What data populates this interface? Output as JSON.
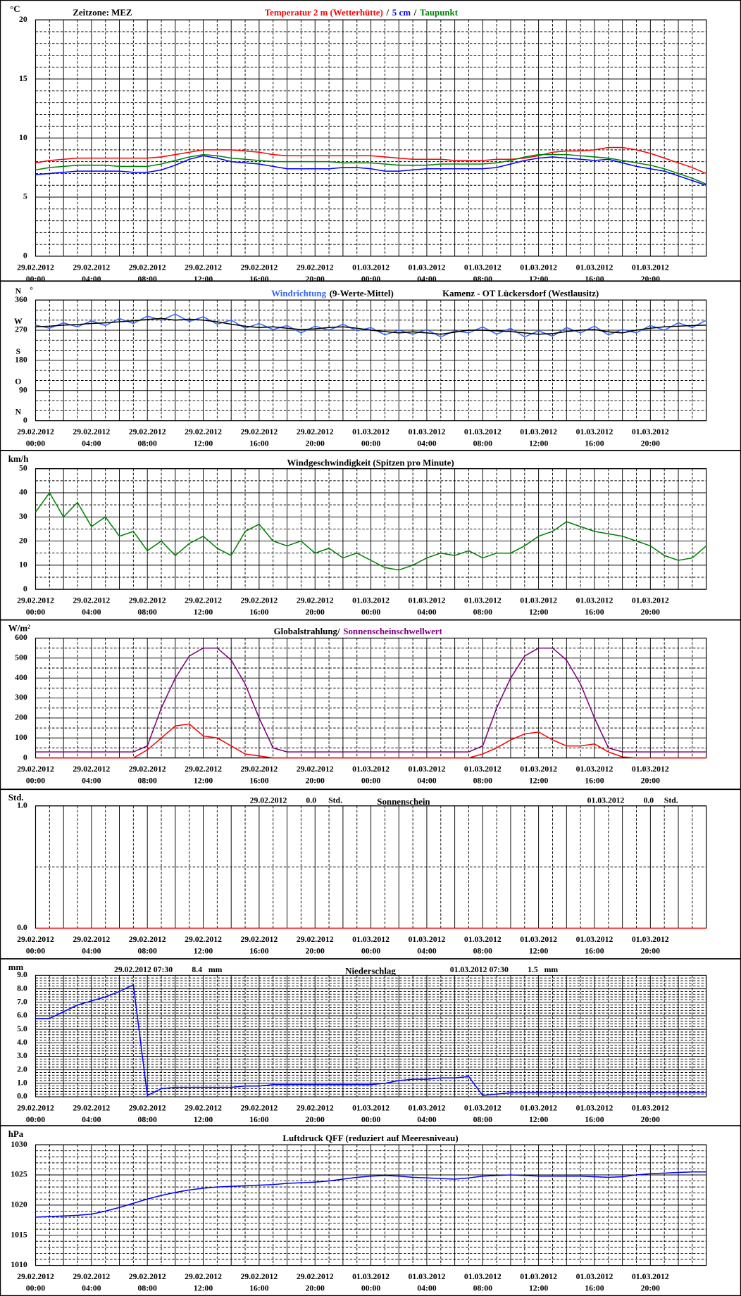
{
  "time_axis": {
    "xlim": [
      0,
      48
    ],
    "xticks": [
      {
        "value": 0,
        "label": [
          "29.02.2012",
          "00:00"
        ]
      },
      {
        "value": 4,
        "label": [
          "29.02.2012",
          "04:00"
        ]
      },
      {
        "value": 8,
        "label": [
          "29.02.2012",
          "08:00"
        ]
      },
      {
        "value": 12,
        "label": [
          "29.02.2012",
          "12:00"
        ]
      },
      {
        "value": 16,
        "label": [
          "29.02.2012",
          "16:00"
        ]
      },
      {
        "value": 20,
        "label": [
          "29.02.2012",
          "20:00"
        ]
      },
      {
        "value": 24,
        "label": [
          "01.03.2012",
          "00:00"
        ]
      },
      {
        "value": 28,
        "label": [
          "01.03.2012",
          "04:00"
        ]
      },
      {
        "value": 32,
        "label": [
          "01.03.2012",
          "08:00"
        ]
      },
      {
        "value": 36,
        "label": [
          "01.03.2012",
          "12:00"
        ]
      },
      {
        "value": 40,
        "label": [
          "01.03.2012",
          "16:00"
        ]
      },
      {
        "value": 44,
        "label": [
          "01.03.2012",
          "20:00"
        ]
      }
    ],
    "xgrid_step": 1,
    "x": [
      0,
      1,
      2,
      3,
      4,
      5,
      6,
      7,
      8,
      9,
      10,
      11,
      12,
      13,
      14,
      15,
      16,
      17,
      18,
      19,
      20,
      21,
      22,
      23,
      24,
      25,
      26,
      27,
      28,
      29,
      30,
      31,
      32,
      33,
      34,
      35,
      36,
      37,
      38,
      39,
      40,
      41,
      42,
      43,
      44,
      45,
      46,
      47,
      48
    ]
  },
  "chart_data": [
    {
      "type": "line",
      "unit": "°C",
      "annotation": "Zeitzone: MEZ",
      "legend_separator": "/",
      "ylim": [
        0,
        20
      ],
      "yticks": [
        0,
        5,
        10,
        15,
        20
      ],
      "ygrid_step": 1,
      "series": [
        {
          "name": "Temperatur 2 m (Wetterhütte)",
          "color": "#ff0000",
          "values": [
            7.9,
            8.1,
            8.2,
            8.3,
            8.3,
            8.3,
            8.3,
            8.3,
            8.3,
            8.4,
            8.6,
            8.8,
            9.0,
            9.0,
            9.0,
            8.9,
            8.8,
            8.6,
            8.5,
            8.5,
            8.5,
            8.5,
            8.5,
            8.5,
            8.5,
            8.4,
            8.3,
            8.2,
            8.2,
            8.2,
            8.1,
            8.1,
            8.1,
            8.2,
            8.2,
            8.3,
            8.5,
            8.8,
            8.9,
            8.9,
            9.0,
            9.2,
            9.2,
            9.0,
            8.7,
            8.3,
            7.9,
            7.5,
            7.0
          ]
        },
        {
          "name": "5 cm",
          "color": "#0000ff",
          "values": [
            6.9,
            7.0,
            7.1,
            7.2,
            7.2,
            7.2,
            7.2,
            7.1,
            7.1,
            7.3,
            7.7,
            8.2,
            8.5,
            8.3,
            8.0,
            7.9,
            7.8,
            7.6,
            7.4,
            7.4,
            7.4,
            7.4,
            7.5,
            7.5,
            7.4,
            7.2,
            7.2,
            7.3,
            7.4,
            7.4,
            7.4,
            7.4,
            7.4,
            7.5,
            7.8,
            8.1,
            8.3,
            8.4,
            8.3,
            8.2,
            8.1,
            8.2,
            7.9,
            7.6,
            7.4,
            7.2,
            6.8,
            6.4,
            6.0
          ]
        },
        {
          "name": "Taupunkt",
          "color": "#008000",
          "values": [
            7.3,
            7.5,
            7.6,
            7.7,
            7.7,
            7.7,
            7.6,
            7.6,
            7.6,
            7.8,
            8.1,
            8.4,
            8.6,
            8.5,
            8.3,
            8.2,
            8.1,
            8.0,
            8.0,
            8.0,
            8.0,
            8.0,
            7.9,
            7.9,
            7.9,
            7.8,
            7.7,
            7.7,
            7.7,
            7.8,
            7.8,
            7.8,
            7.8,
            7.9,
            8.1,
            8.4,
            8.6,
            8.6,
            8.6,
            8.5,
            8.4,
            8.3,
            8.1,
            7.9,
            7.7,
            7.4,
            7.0,
            6.6,
            6.1
          ]
        }
      ]
    },
    {
      "type": "line",
      "unit": "°",
      "annotation": "Kamenz - OT Lückersdorf (Westlausitz)",
      "ylim": [
        0,
        360
      ],
      "yticks": [
        0,
        90,
        180,
        270,
        360
      ],
      "compass": [
        "N",
        "O",
        "S",
        "W",
        "N"
      ],
      "ygrid_step": 30,
      "series": [
        {
          "name": "Windrichtung",
          "color": "#3366ff",
          "values": [
            285,
            276,
            292,
            280,
            298,
            284,
            305,
            290,
            312,
            300,
            318,
            296,
            310,
            288,
            300,
            276,
            290,
            272,
            284,
            262,
            282,
            270,
            288,
            268,
            278,
            256,
            270,
            258,
            272,
            250,
            268,
            262,
            280,
            258,
            276,
            250,
            268,
            252,
            278,
            262,
            282,
            256,
            272,
            262,
            284,
            270,
            292,
            278,
            300
          ]
        },
        {
          "name": "(9-Werte-Mittel)",
          "color": "#000000",
          "values": [
            280,
            282,
            285,
            287,
            290,
            292,
            295,
            298,
            302,
            305,
            300,
            303,
            300,
            295,
            288,
            282,
            278,
            280,
            276,
            272,
            274,
            278,
            280,
            276,
            270,
            266,
            262,
            265,
            262,
            258,
            264,
            270,
            270,
            268,
            266,
            262,
            258,
            260,
            266,
            270,
            272,
            265,
            262,
            270,
            276,
            280,
            282,
            284,
            285
          ]
        }
      ]
    },
    {
      "type": "line",
      "unit": "km/h",
      "title": "Windgeschwindigkeit (Spitzen pro Minute)",
      "ylim": [
        0,
        50
      ],
      "yticks": [
        0,
        10,
        20,
        30,
        40,
        50
      ],
      "ygrid_step": 5,
      "series": [
        {
          "name": null,
          "color": "#008000",
          "values": [
            32,
            40,
            30,
            36,
            26,
            30,
            22,
            24,
            16,
            20,
            14,
            19,
            22,
            17,
            14,
            24,
            27,
            20,
            18,
            20,
            15,
            17,
            13,
            15,
            12,
            9,
            8,
            10,
            13,
            15,
            14,
            16,
            13,
            15,
            15,
            18,
            22,
            24,
            28,
            26,
            24,
            23,
            22,
            20,
            18,
            14,
            12,
            13,
            18
          ]
        }
      ]
    },
    {
      "type": "line",
      "unit": "W/m²",
      "ylim": [
        0,
        600
      ],
      "yticks": [
        0,
        100,
        200,
        300,
        400,
        500,
        600
      ],
      "ygrid_step": 50,
      "series": [
        {
          "name": "Globalstrahlung/",
          "color": "#ff0000",
          "values": [
            0,
            0,
            0,
            0,
            0,
            0,
            0,
            0,
            40,
            100,
            160,
            170,
            110,
            100,
            60,
            20,
            10,
            0,
            0,
            0,
            0,
            0,
            0,
            0,
            0,
            0,
            0,
            0,
            0,
            0,
            0,
            0,
            20,
            50,
            90,
            120,
            130,
            90,
            60,
            60,
            70,
            30,
            5,
            0,
            0,
            0,
            0,
            0,
            0
          ]
        },
        {
          "name": "Sonnenscheinschwellwert",
          "color": "#800080",
          "values": [
            30,
            30,
            30,
            30,
            30,
            30,
            30,
            30,
            60,
            250,
            400,
            510,
            550,
            550,
            490,
            370,
            200,
            50,
            30,
            30,
            30,
            30,
            30,
            30,
            30,
            30,
            30,
            30,
            30,
            30,
            30,
            30,
            60,
            250,
            400,
            510,
            550,
            550,
            490,
            370,
            200,
            50,
            30,
            30,
            30,
            30,
            30,
            30,
            30
          ]
        }
      ]
    },
    {
      "type": "line",
      "unit": "Std.",
      "title": "Sonnenschein",
      "ylim": [
        0,
        1
      ],
      "yticks": [
        {
          "value": 0,
          "label": "0.0"
        },
        {
          "value": 1,
          "label": "1.0"
        }
      ],
      "ygrid_step": 0.5,
      "totals": [
        {
          "date": "29.02.2012",
          "value": 0,
          "value_label": "0.0",
          "unit": "Std."
        },
        {
          "date": "01.03.2012",
          "value": 0,
          "value_label": "0.0",
          "unit": "Std."
        }
      ],
      "series": [
        {
          "name": null,
          "color": "#ff0000",
          "values": [
            0,
            0,
            0,
            0,
            0,
            0,
            0,
            0,
            0,
            0,
            0,
            0,
            0,
            0,
            0,
            0,
            0,
            0,
            0,
            0,
            0,
            0,
            0,
            0,
            0,
            0,
            0,
            0,
            0,
            0,
            0,
            0,
            0,
            0,
            0,
            0,
            0,
            0,
            0,
            0,
            0,
            0,
            0,
            0,
            0,
            0,
            0,
            0,
            0
          ]
        }
      ]
    },
    {
      "type": "line",
      "unit": "mm",
      "title": "Niederschlag",
      "ylim": [
        0,
        9
      ],
      "yticks": [
        {
          "value": 0,
          "label": "0.0"
        },
        {
          "value": 1,
          "label": "1.0"
        },
        {
          "value": 2,
          "label": "2.0"
        },
        {
          "value": 3,
          "label": "3.0"
        },
        {
          "value": 4,
          "label": "4.0"
        },
        {
          "value": 5,
          "label": "5.0"
        },
        {
          "value": 6,
          "label": "6.0"
        },
        {
          "value": 7,
          "label": "7.0"
        },
        {
          "value": 8,
          "label": "8.0"
        },
        {
          "value": 9,
          "label": "9.0"
        }
      ],
      "ygrid_step": 0.2,
      "totals": [
        {
          "date": "29.02.2012 07:30",
          "value": 8.4,
          "unit": "mm"
        },
        {
          "date": "01.03.2012 07:30",
          "value": 1.5,
          "unit": "mm"
        }
      ],
      "series": [
        {
          "name": null,
          "color": "#0000ff",
          "values": [
            5.8,
            5.8,
            6.3,
            6.8,
            7.1,
            7.4,
            7.8,
            8.3,
            0.1,
            0.6,
            0.7,
            0.7,
            0.7,
            0.7,
            0.7,
            0.8,
            0.8,
            0.9,
            0.9,
            0.9,
            0.9,
            0.9,
            0.9,
            0.9,
            0.9,
            1.0,
            1.2,
            1.3,
            1.3,
            1.4,
            1.4,
            1.5,
            0.1,
            0.2,
            0.3,
            0.3,
            0.3,
            0.3,
            0.3,
            0.3,
            0.3,
            0.3,
            0.3,
            0.3,
            0.3,
            0.3,
            0.3,
            0.3,
            0.3
          ]
        }
      ]
    },
    {
      "type": "line",
      "unit": "hPa",
      "title": "Luftdruck QFF (reduziert auf Meeresniveau)",
      "ylim": [
        1010,
        1030
      ],
      "yticks": [
        1010,
        1015,
        1020,
        1025,
        1030
      ],
      "ygrid_step": 1,
      "series": [
        {
          "name": null,
          "color": "#0000ff",
          "values": [
            1018,
            1018.1,
            1018.2,
            1018.3,
            1018.5,
            1019,
            1019.6,
            1020.3,
            1021,
            1021.6,
            1022.1,
            1022.5,
            1022.8,
            1023,
            1023.1,
            1023.2,
            1023.3,
            1023.4,
            1023.6,
            1023.7,
            1023.8,
            1024,
            1024.3,
            1024.6,
            1024.8,
            1024.9,
            1024.8,
            1024.6,
            1024.5,
            1024.4,
            1024.3,
            1024.5,
            1024.8,
            1024.9,
            1025,
            1024.9,
            1024.8,
            1024.8,
            1024.8,
            1024.8,
            1024.7,
            1024.6,
            1024.7,
            1025,
            1025.2,
            1025.3,
            1025.4,
            1025.5,
            1025.5
          ]
        }
      ]
    }
  ]
}
